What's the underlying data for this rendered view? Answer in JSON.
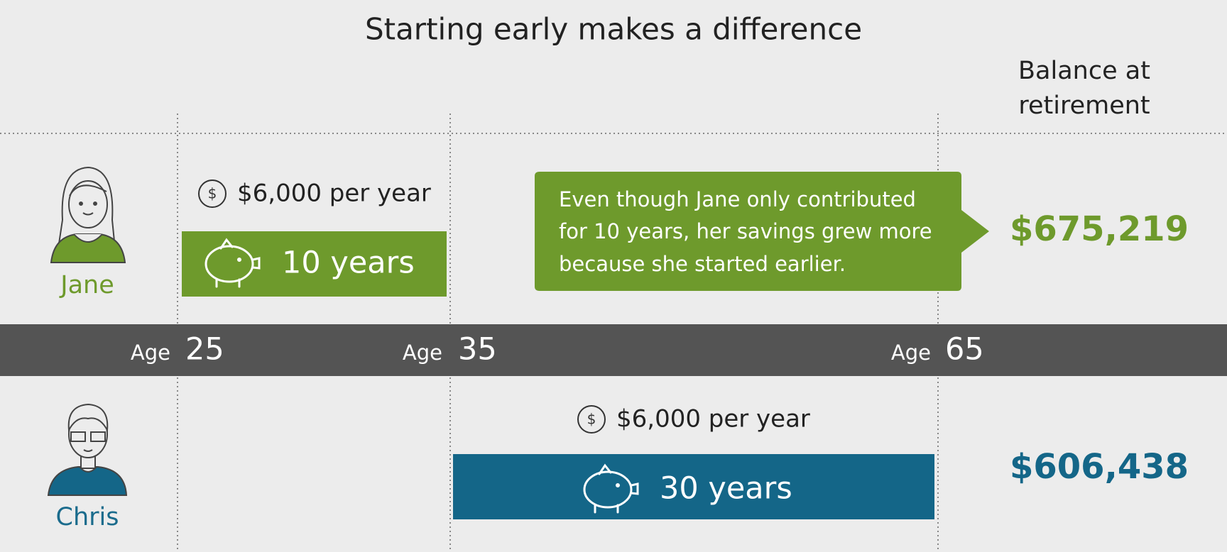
{
  "title": "Starting early makes a difference",
  "balance_header": [
    "Balance at",
    "retirement"
  ],
  "callout": [
    "Even though Jane only contributed",
    "for 10 years, her savings grew more",
    "because she started earlier."
  ],
  "timeline": [
    {
      "prefix": "Age",
      "age": 25
    },
    {
      "prefix": "Age",
      "age": 35
    },
    {
      "prefix": "Age",
      "age": 65
    }
  ],
  "people": [
    {
      "name": "Jane",
      "icon": "$",
      "contribution": "$6,000 per year",
      "duration": "10 years",
      "balance": "$675,219"
    },
    {
      "name": "Chris",
      "icon": "$",
      "contribution": "$6,000 per year",
      "duration": "30 years",
      "balance": "$606,438"
    }
  ]
}
